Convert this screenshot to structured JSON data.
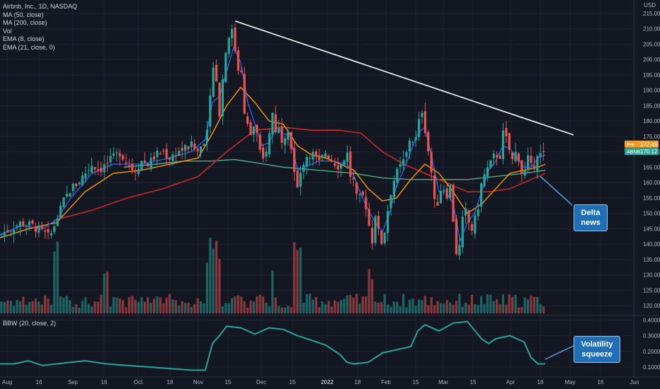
{
  "header": {
    "symbol_line": "Airbnb, Inc., 1D, NASDAQ",
    "currency": "USD"
  },
  "legend": [
    "MA (50, close)",
    "MA (200, close)",
    "Vol",
    "EMA (8, close)",
    "EMA (21, close, 0)"
  ],
  "bbw_legend": "BBW (20, close, 2)",
  "annotations": {
    "delta": [
      "Delta",
      "news"
    ],
    "volatility": [
      "Volatility",
      "squeeze"
    ]
  },
  "price_labels": [
    {
      "tag": "Pre",
      "value": "172.49",
      "color": "#f89a1d"
    },
    {
      "tag": "ABNB",
      "value": "170.12",
      "color": "#26a69a"
    }
  ],
  "colors": {
    "bg": "#131722",
    "grid": "#1f2333",
    "up": "#26a69a",
    "down": "#ef5350",
    "ema8": "#2962ff",
    "ema21": "#ff9800",
    "ma50": "#c62828",
    "ma200": "#4caf85",
    "bbw": "#26a69a",
    "trend": "#ffffff"
  },
  "chart_data": {
    "type": "candlestick",
    "x_tick_labels": [
      "Aug",
      "16",
      "Sep",
      "16",
      "Oct",
      "18",
      "Nov",
      "15",
      "Dec",
      "15",
      "2022",
      "18",
      "Feb",
      "15",
      "Mar",
      "15",
      "Apr",
      "18",
      "May",
      "16",
      "Jun"
    ],
    "y_tick_labels": [
      "120.00",
      "125.00",
      "130.00",
      "135.00",
      "140.00",
      "145.00",
      "150.00",
      "155.00",
      "160.00",
      "165.00",
      "170.00",
      "175.00",
      "180.00",
      "185.00",
      "190.00",
      "195.00",
      "200.00",
      "205.00",
      "210.00",
      "215.00"
    ],
    "ylim": [
      117.5,
      217.5
    ],
    "bbw_tick_labels": [
      "0.1000",
      "0.2000",
      "0.3000",
      "0.4000"
    ],
    "bbw_ylim": [
      0.05,
      0.42
    ],
    "trendline": [
      [
        332,
        212.5
      ],
      [
        810,
        175.5
      ]
    ],
    "close_path": [
      [
        0,
        143
      ],
      [
        15,
        145
      ],
      [
        30,
        147
      ],
      [
        45,
        146
      ],
      [
        60,
        144
      ],
      [
        70,
        142
      ],
      [
        80,
        148
      ],
      [
        90,
        154
      ],
      [
        100,
        158
      ],
      [
        110,
        160
      ],
      [
        120,
        163
      ],
      [
        130,
        166
      ],
      [
        140,
        164
      ],
      [
        150,
        166
      ],
      [
        160,
        168
      ],
      [
        170,
        170
      ],
      [
        180,
        166
      ],
      [
        190,
        164
      ],
      [
        200,
        167
      ],
      [
        210,
        166
      ],
      [
        220,
        169
      ],
      [
        230,
        170
      ],
      [
        240,
        168
      ],
      [
        250,
        170
      ],
      [
        260,
        171
      ],
      [
        270,
        172
      ],
      [
        280,
        170
      ],
      [
        290,
        175
      ],
      [
        295,
        180
      ],
      [
        300,
        200
      ],
      [
        305,
        195
      ],
      [
        310,
        183
      ],
      [
        315,
        195
      ],
      [
        320,
        205
      ],
      [
        325,
        210
      ],
      [
        330,
        208
      ],
      [
        335,
        196
      ],
      [
        340,
        200
      ],
      [
        345,
        182
      ],
      [
        350,
        178
      ],
      [
        355,
        175
      ],
      [
        360,
        180
      ],
      [
        365,
        172
      ],
      [
        370,
        166
      ],
      [
        375,
        170
      ],
      [
        380,
        175
      ],
      [
        385,
        183
      ],
      [
        390,
        176
      ],
      [
        395,
        178
      ],
      [
        400,
        172
      ],
      [
        405,
        180
      ],
      [
        410,
        174
      ],
      [
        415,
        164
      ],
      [
        420,
        158
      ],
      [
        425,
        163
      ],
      [
        430,
        168
      ],
      [
        440,
        170
      ],
      [
        450,
        166
      ],
      [
        460,
        170
      ],
      [
        470,
        167
      ],
      [
        480,
        165
      ],
      [
        490,
        170
      ],
      [
        495,
        162
      ],
      [
        500,
        160
      ],
      [
        505,
        153
      ],
      [
        510,
        156
      ],
      [
        515,
        155
      ],
      [
        520,
        148
      ],
      [
        525,
        140
      ],
      [
        530,
        150
      ],
      [
        535,
        143
      ],
      [
        540,
        140
      ],
      [
        545,
        147
      ],
      [
        550,
        155
      ],
      [
        555,
        160
      ],
      [
        560,
        163
      ],
      [
        565,
        165
      ],
      [
        570,
        167
      ],
      [
        575,
        170
      ],
      [
        580,
        176
      ],
      [
        585,
        172
      ],
      [
        590,
        177
      ],
      [
        595,
        185
      ],
      [
        600,
        178
      ],
      [
        605,
        170
      ],
      [
        610,
        162
      ],
      [
        615,
        150
      ],
      [
        620,
        156
      ],
      [
        625,
        160
      ],
      [
        630,
        155
      ],
      [
        635,
        160
      ],
      [
        640,
        148
      ],
      [
        645,
        136
      ],
      [
        650,
        140
      ],
      [
        655,
        152
      ],
      [
        660,
        149
      ],
      [
        665,
        144
      ],
      [
        670,
        147
      ],
      [
        675,
        152
      ],
      [
        680,
        160
      ],
      [
        685,
        163
      ],
      [
        690,
        165
      ],
      [
        695,
        167
      ],
      [
        700,
        170
      ],
      [
        705,
        167
      ],
      [
        710,
        176
      ],
      [
        715,
        174
      ],
      [
        720,
        170
      ],
      [
        725,
        166
      ],
      [
        730,
        172
      ],
      [
        735,
        164
      ],
      [
        740,
        162
      ],
      [
        745,
        168
      ],
      [
        750,
        165
      ],
      [
        755,
        166
      ],
      [
        760,
        171
      ],
      [
        765,
        168
      ],
      [
        770,
        170
      ]
    ],
    "ema8_path": [
      [
        0,
        143
      ],
      [
        30,
        146
      ],
      [
        60,
        145
      ],
      [
        80,
        148
      ],
      [
        100,
        155
      ],
      [
        130,
        163
      ],
      [
        160,
        166
      ],
      [
        200,
        166
      ],
      [
        240,
        168
      ],
      [
        270,
        170
      ],
      [
        290,
        174
      ],
      [
        300,
        186
      ],
      [
        310,
        188
      ],
      [
        320,
        196
      ],
      [
        330,
        204
      ],
      [
        340,
        199
      ],
      [
        350,
        186
      ],
      [
        360,
        179
      ],
      [
        370,
        172
      ],
      [
        380,
        173
      ],
      [
        390,
        178
      ],
      [
        400,
        176
      ],
      [
        410,
        175
      ],
      [
        420,
        164
      ],
      [
        430,
        165
      ],
      [
        450,
        167
      ],
      [
        470,
        167
      ],
      [
        490,
        166
      ],
      [
        500,
        162
      ],
      [
        510,
        156
      ],
      [
        520,
        151
      ],
      [
        530,
        147
      ],
      [
        540,
        144
      ],
      [
        550,
        150
      ],
      [
        560,
        159
      ],
      [
        570,
        164
      ],
      [
        580,
        170
      ],
      [
        590,
        176
      ],
      [
        600,
        178
      ],
      [
        610,
        168
      ],
      [
        620,
        157
      ],
      [
        630,
        157
      ],
      [
        640,
        153
      ],
      [
        650,
        141
      ],
      [
        660,
        147
      ],
      [
        670,
        150
      ],
      [
        680,
        157
      ],
      [
        690,
        164
      ],
      [
        700,
        167
      ],
      [
        710,
        172
      ],
      [
        720,
        171
      ],
      [
        730,
        168
      ],
      [
        740,
        165
      ],
      [
        750,
        165
      ],
      [
        760,
        168
      ],
      [
        770,
        169
      ]
    ],
    "ema21_path": [
      [
        0,
        142
      ],
      [
        40,
        145
      ],
      [
        80,
        147
      ],
      [
        120,
        157
      ],
      [
        160,
        163
      ],
      [
        200,
        164
      ],
      [
        240,
        166
      ],
      [
        280,
        168
      ],
      [
        300,
        176
      ],
      [
        320,
        185
      ],
      [
        340,
        191
      ],
      [
        360,
        186
      ],
      [
        380,
        180
      ],
      [
        400,
        179
      ],
      [
        420,
        172
      ],
      [
        440,
        169
      ],
      [
        460,
        168
      ],
      [
        480,
        166
      ],
      [
        500,
        164
      ],
      [
        520,
        158
      ],
      [
        540,
        154
      ],
      [
        560,
        155
      ],
      [
        580,
        161
      ],
      [
        600,
        166
      ],
      [
        620,
        163
      ],
      [
        640,
        157
      ],
      [
        660,
        150
      ],
      [
        680,
        153
      ],
      [
        700,
        158
      ],
      [
        720,
        163
      ],
      [
        740,
        164
      ],
      [
        760,
        165
      ],
      [
        770,
        166
      ]
    ],
    "ma50_path": [
      [
        80,
        148
      ],
      [
        130,
        151
      ],
      [
        180,
        155
      ],
      [
        230,
        158
      ],
      [
        280,
        162
      ],
      [
        320,
        170
      ],
      [
        360,
        177
      ],
      [
        400,
        178
      ],
      [
        440,
        177
      ],
      [
        480,
        177
      ],
      [
        510,
        176
      ],
      [
        540,
        170
      ],
      [
        570,
        166
      ],
      [
        600,
        163
      ],
      [
        630,
        160
      ],
      [
        660,
        157
      ],
      [
        690,
        157
      ],
      [
        720,
        158
      ],
      [
        750,
        161
      ],
      [
        770,
        163
      ]
    ],
    "ma200_path": [
      [
        175,
        165
      ],
      [
        220,
        166
      ],
      [
        260,
        167
      ],
      [
        300,
        167
      ],
      [
        330,
        167.5
      ],
      [
        360,
        166.5
      ],
      [
        400,
        165
      ],
      [
        450,
        164
      ],
      [
        500,
        163
      ],
      [
        540,
        161.5
      ],
      [
        580,
        161
      ],
      [
        620,
        161
      ],
      [
        660,
        161
      ],
      [
        700,
        162
      ],
      [
        740,
        163
      ],
      [
        770,
        164
      ]
    ],
    "bbw_path": [
      [
        0,
        0.12
      ],
      [
        20,
        0.12
      ],
      [
        40,
        0.14
      ],
      [
        60,
        0.11
      ],
      [
        80,
        0.12
      ],
      [
        100,
        0.13
      ],
      [
        120,
        0.14
      ],
      [
        150,
        0.12
      ],
      [
        180,
        0.11
      ],
      [
        210,
        0.1
      ],
      [
        240,
        0.09
      ],
      [
        270,
        0.08
      ],
      [
        290,
        0.08
      ],
      [
        300,
        0.25
      ],
      [
        310,
        0.3
      ],
      [
        320,
        0.36
      ],
      [
        340,
        0.35
      ],
      [
        360,
        0.31
      ],
      [
        380,
        0.35
      ],
      [
        400,
        0.34
      ],
      [
        420,
        0.3
      ],
      [
        440,
        0.27
      ],
      [
        460,
        0.24
      ],
      [
        480,
        0.18
      ],
      [
        490,
        0.13
      ],
      [
        500,
        0.12
      ],
      [
        520,
        0.13
      ],
      [
        540,
        0.19
      ],
      [
        560,
        0.21
      ],
      [
        580,
        0.23
      ],
      [
        590,
        0.33
      ],
      [
        600,
        0.37
      ],
      [
        620,
        0.33
      ],
      [
        640,
        0.38
      ],
      [
        660,
        0.39
      ],
      [
        680,
        0.28
      ],
      [
        690,
        0.25
      ],
      [
        700,
        0.28
      ],
      [
        720,
        0.3
      ],
      [
        740,
        0.26
      ],
      [
        750,
        0.16
      ],
      [
        760,
        0.12
      ],
      [
        770,
        0.12
      ]
    ]
  }
}
